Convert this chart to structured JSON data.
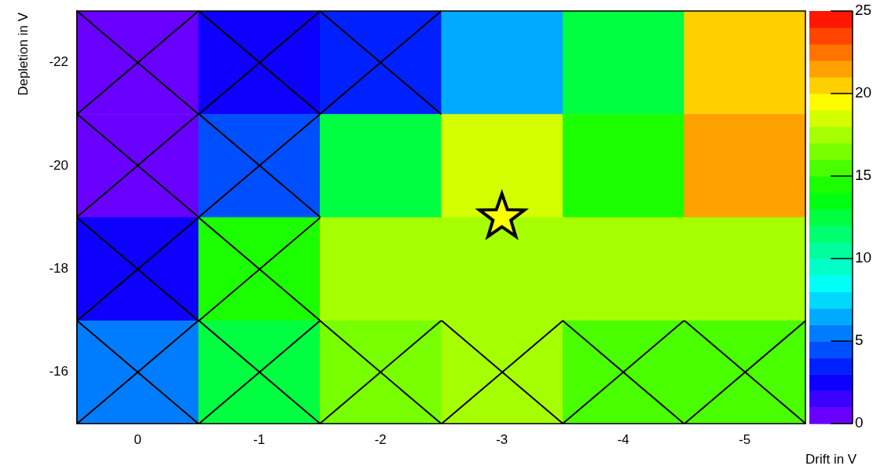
{
  "chart_data": {
    "type": "heatmap",
    "xlabel": "Drift in V",
    "ylabel": "Depletion in V",
    "xlim": [
      0.5,
      -5.5
    ],
    "xticks": [
      0,
      -1,
      -2,
      -3,
      -4,
      -5
    ],
    "ylim": [
      -15,
      -23
    ],
    "yticks": [
      -22,
      -20,
      -18,
      -16
    ],
    "cells": [
      [
        0.5,
        2.5,
        3.5,
        6.5,
        12.5,
        20.5
      ],
      [
        0.5,
        4.5,
        12.5,
        18.5,
        14.5,
        21.5
      ],
      [
        2.5,
        14.5,
        17.5,
        17.5,
        17.5,
        17.5
      ],
      [
        5.5,
        12.5,
        16.5,
        17.5,
        15.5,
        15.5
      ]
    ],
    "clim": [
      0,
      25
    ],
    "cticks": [
      0,
      5,
      10,
      15,
      20,
      25
    ],
    "series": [
      {
        "type": "scatter",
        "marker": "star",
        "color": "#ffff00",
        "x": [
          -3
        ],
        "values": [
          -19
        ]
      }
    ]
  }
}
